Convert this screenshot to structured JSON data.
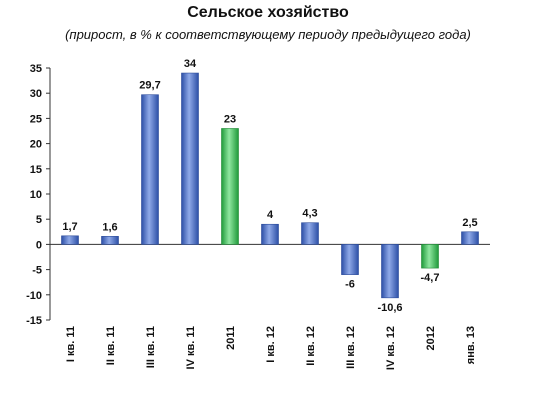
{
  "chart_data": {
    "type": "bar",
    "title": "Сельское хозяйство",
    "subtitle": "(прирост, в % к соответствующему периоду предыдущего года)",
    "categories": [
      "I кв. 11",
      "II кв. 11",
      "III кв. 11",
      "IV кв. 11",
      "2011",
      "I кв. 12",
      "II кв. 12",
      "III кв. 12",
      "IV кв. 12",
      "2012",
      "янв. 13"
    ],
    "values": [
      1.7,
      1.6,
      29.7,
      34,
      23,
      4,
      4.3,
      -6,
      -10.6,
      -4.7,
      2.5
    ],
    "data_labels": [
      "1,7",
      "1,6",
      "29,7",
      "34",
      "23",
      "4",
      "4,3",
      "-6",
      "-10,6",
      "-4,7",
      "2,5"
    ],
    "bar_kinds": [
      "quarter",
      "quarter",
      "quarter",
      "quarter",
      "year",
      "quarter",
      "quarter",
      "quarter",
      "quarter",
      "year",
      "quarter"
    ],
    "ylim": [
      -15,
      35
    ],
    "yticks": [
      35,
      30,
      25,
      20,
      15,
      10,
      5,
      0,
      -5,
      -10,
      -15
    ],
    "xlabel": "",
    "ylabel": "",
    "grid": false,
    "colors": {
      "quarter": "#4a6fc4",
      "year": "#3fbf5a",
      "axis": "#333333"
    }
  }
}
